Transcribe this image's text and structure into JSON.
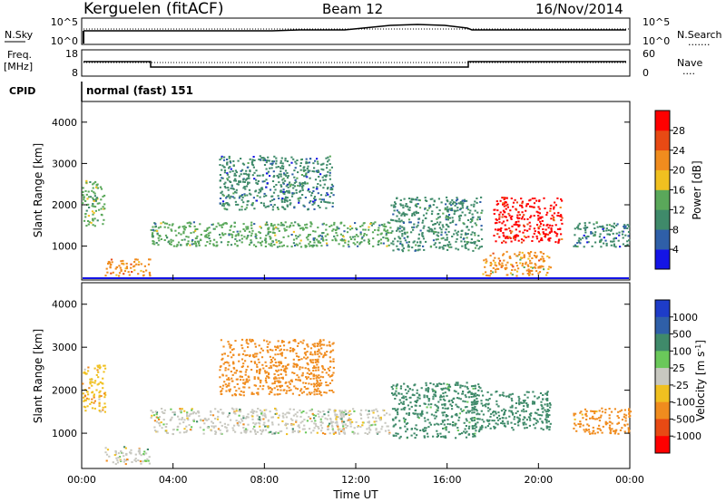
{
  "header": {
    "station": "Kerguelen (fitACF)",
    "beam": "Beam 12",
    "date": "16/Nov/2014"
  },
  "panels": {
    "nsky": {
      "label": "N.Sky",
      "ticks_left": [
        "10^5",
        "10^0"
      ],
      "ticks_right": [
        "10^5",
        "10^0"
      ],
      "right_label": "N.Search",
      "right_marker": "......."
    },
    "freq": {
      "label_line1": "Freq.",
      "label_line2": "[MHz]",
      "ticks_left": [
        "18",
        "8"
      ],
      "ticks_right": [
        "60",
        "0"
      ],
      "right_label": "Nave",
      "right_marker": "...."
    },
    "cpid": {
      "label": "CPID",
      "value": "normal (fast) 151"
    }
  },
  "chart_data": [
    {
      "type": "heatmap",
      "name": "power",
      "xlabel": "",
      "ylabel": "Slant Range [km]",
      "xlim": [
        0,
        24
      ],
      "ylim": [
        180,
        4500
      ],
      "yticks": [
        1000,
        2000,
        3000,
        4000
      ],
      "xticks": [
        0,
        4,
        8,
        12,
        16,
        20,
        24
      ],
      "colorbar": {
        "label": "Power [dB]",
        "ticks": [
          "4",
          "8",
          "12",
          "16",
          "20",
          "24",
          "28"
        ],
        "colors": [
          "#1414e6",
          "#2f5fa8",
          "#3f8a6a",
          "#5aa85a",
          "#f0c020",
          "#f08c1e",
          "#e84a14",
          "#ff0000"
        ]
      },
      "echo_regions": [
        {
          "t0": 0.0,
          "t1": 1.0,
          "r0": 1500,
          "r1": 2600,
          "value": 14
        },
        {
          "t0": 1.0,
          "t1": 3.0,
          "r0": 300,
          "r1": 700,
          "value": 22
        },
        {
          "t0": 3.0,
          "t1": 13.5,
          "r0": 1000,
          "r1": 1600,
          "value": 12
        },
        {
          "t0": 6.0,
          "t1": 11.0,
          "r0": 1900,
          "r1": 3200,
          "value": 8
        },
        {
          "t0": 13.5,
          "t1": 17.5,
          "r0": 900,
          "r1": 2200,
          "value": 10
        },
        {
          "t0": 18.0,
          "t1": 21.0,
          "r0": 1100,
          "r1": 2200,
          "value": 28
        },
        {
          "t0": 17.5,
          "t1": 20.5,
          "r0": 300,
          "r1": 900,
          "value": 20
        },
        {
          "t0": 21.5,
          "t1": 24.0,
          "r0": 1000,
          "r1": 1600,
          "value": 8
        }
      ]
    },
    {
      "type": "heatmap",
      "name": "velocity",
      "xlabel": "Time UT",
      "ylabel": "Slant Range [km]",
      "xlim": [
        0,
        24
      ],
      "ylim": [
        180,
        4500
      ],
      "yticks": [
        1000,
        2000,
        3000,
        4000
      ],
      "xticks": [
        0,
        4,
        8,
        12,
        16,
        20,
        24
      ],
      "xticklabels": [
        "00:00",
        "04:00",
        "08:00",
        "12:00",
        "16:00",
        "20:00",
        "00:00"
      ],
      "colorbar": {
        "label": "Velocity [m s^-1]",
        "ticks": [
          "1000",
          "500",
          "100",
          "25",
          "-25",
          "-100",
          "-500",
          "-1000"
        ],
        "colors": [
          "#1e3cc8",
          "#2f5fa8",
          "#3f8a6a",
          "#6ac85a",
          "#c8c8c0",
          "#f0c020",
          "#f08c1e",
          "#e84a14",
          "#ff0000"
        ]
      },
      "echo_regions": [
        {
          "t0": 0.0,
          "t1": 1.0,
          "r0": 1500,
          "r1": 2600,
          "value": -100
        },
        {
          "t0": 1.0,
          "t1": 3.0,
          "r0": 300,
          "r1": 700,
          "value": 0
        },
        {
          "t0": 3.0,
          "t1": 13.5,
          "r0": 1000,
          "r1": 1600,
          "value": 0
        },
        {
          "t0": 6.0,
          "t1": 11.0,
          "r0": 1900,
          "r1": 3200,
          "value": -300
        },
        {
          "t0": 13.5,
          "t1": 17.5,
          "r0": 900,
          "r1": 2200,
          "value": 200
        },
        {
          "t0": 17.5,
          "t1": 20.5,
          "r0": 1100,
          "r1": 2000,
          "value": 300
        },
        {
          "t0": 21.5,
          "t1": 24.0,
          "r0": 1000,
          "r1": 1600,
          "value": -200
        }
      ]
    }
  ]
}
